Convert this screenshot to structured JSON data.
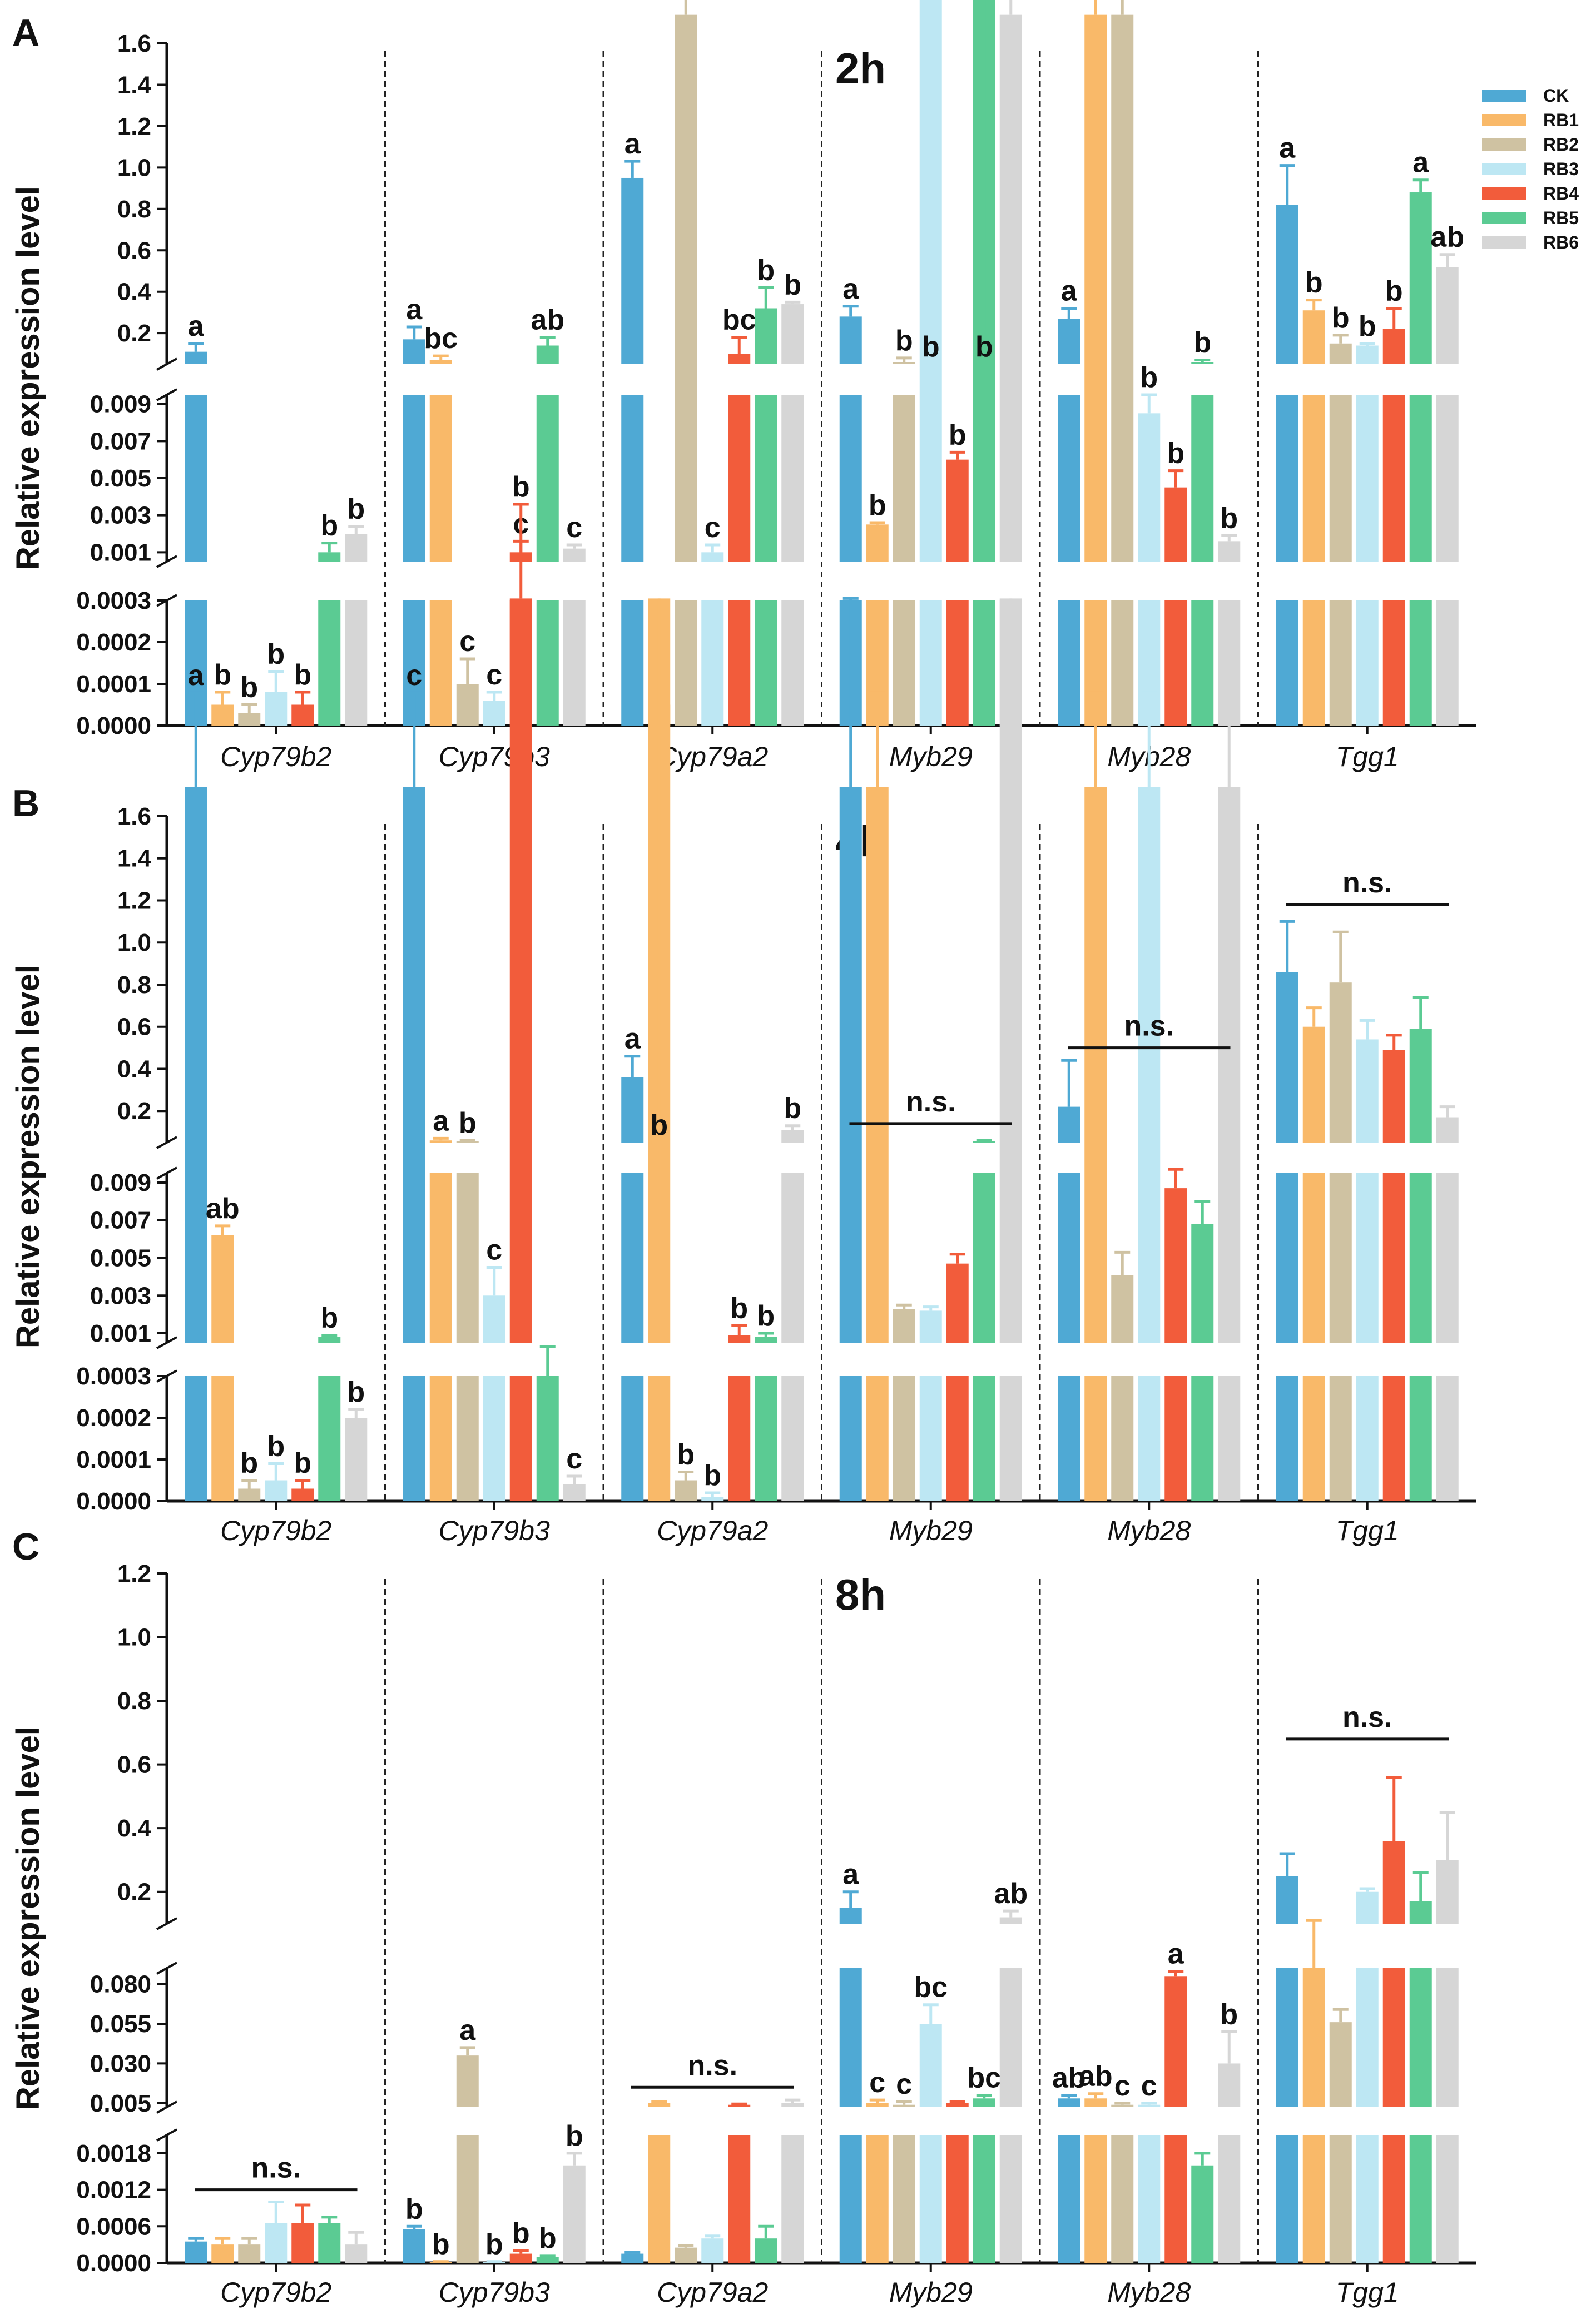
{
  "colors": {
    "CK": "#4FA9D4",
    "RB1": "#F9B969",
    "RB2": "#CFC2A2",
    "RB3": "#BDE7F3",
    "RB4": "#F25C3B",
    "RB5": "#5BCB93",
    "RB6": "#D6D6D6"
  },
  "legend": [
    "CK",
    "RB1",
    "RB2",
    "RB3",
    "RB4",
    "RB5",
    "RB6"
  ],
  "chart_data": [
    {
      "type": "bar",
      "panel": "A",
      "title": "2h",
      "ylabel": "Relative expression level",
      "categories": [
        "Cyp79b2",
        "Cyp79b3",
        "Cyp79a2",
        "Myb29",
        "Myb28",
        "Tgg1"
      ],
      "y_segments": [
        {
          "range": [
            0,
            0.0003
          ],
          "ticks": [
            "0.0000",
            "0.0001",
            "0.0002",
            "0.0003"
          ]
        },
        {
          "range": [
            0.0005,
            0.0095
          ],
          "ticks": [
            "0.001",
            "0.003",
            "0.005",
            "0.007",
            "0.009"
          ]
        },
        {
          "range": [
            0.05,
            1.6
          ],
          "ticks": [
            "0.2",
            "0.4",
            "0.6",
            "0.8",
            "1.0",
            "1.2",
            "1.4",
            "1.6"
          ]
        }
      ],
      "series": [
        {
          "name": "CK",
          "values": [
            0.11,
            0.17,
            0.95,
            0.28,
            0.27,
            0.82
          ],
          "errors": [
            0.04,
            0.06,
            0.08,
            0.05,
            0.05,
            0.19
          ]
        },
        {
          "name": "RB1",
          "values": [
            5e-05,
            0.07,
            5e-05,
            0.0025,
            0.03,
            0.31
          ],
          "errors": [
            3e-05,
            0.02,
            2e-05,
            0.0001,
            0.005,
            0.05
          ]
        },
        {
          "name": "RB2",
          "values": [
            3e-05,
            0.0001,
            0.03,
            0.06,
            0.03,
            0.15
          ],
          "errors": [
            2e-05,
            6e-05,
            0.005,
            0.02,
            0.005,
            0.04
          ]
        },
        {
          "name": "RB3",
          "values": [
            8e-05,
            6e-05,
            0.001,
            0.04,
            0.0085,
            0.14
          ],
          "errors": [
            5e-05,
            2e-05,
            0.0004,
            0.01,
            0.001,
            0.01
          ]
        },
        {
          "name": "RB4",
          "values": [
            5e-05,
            0.001,
            0.1,
            0.006,
            0.0045,
            0.22
          ],
          "errors": [
            3e-05,
            0.0006,
            0.08,
            0.0004,
            0.0009,
            0.1
          ]
        },
        {
          "name": "RB5",
          "values": [
            0.001,
            0.14,
            0.32,
            0.04,
            0.06,
            0.88
          ],
          "errors": [
            0.0005,
            0.04,
            0.1,
            0.01,
            0.01,
            0.06
          ]
        },
        {
          "name": "RB6",
          "values": [
            0.002,
            0.0012,
            0.34,
            0.03,
            0.0016,
            0.52
          ],
          "errors": [
            0.0004,
            0.0002,
            0.01,
            0.005,
            0.0003,
            0.06
          ]
        }
      ],
      "significance": [
        [
          "a",
          "b",
          "b",
          "b",
          "b",
          "b",
          "b"
        ],
        [
          "a",
          "bc",
          "c",
          "c",
          "c",
          "ab",
          "c"
        ],
        [
          "a",
          "c",
          "c",
          "c",
          "bc",
          "b",
          "b"
        ],
        [
          "a",
          "b",
          "b",
          "b",
          "b",
          "b",
          "b"
        ],
        [
          "a",
          "b",
          "b",
          "b",
          "b",
          "b",
          "b"
        ],
        [
          "a",
          "b",
          "b",
          "b",
          "b",
          "a",
          "ab"
        ]
      ],
      "ns_groups": []
    },
    {
      "type": "bar",
      "panel": "B",
      "title": "4h",
      "ylabel": "Relative expression level",
      "categories": [
        "Cyp79b2",
        "Cyp79b3",
        "Cyp79a2",
        "Myb29",
        "Myb28",
        "Tgg1"
      ],
      "y_segments": [
        {
          "range": [
            0,
            0.0003
          ],
          "ticks": [
            "0.0000",
            "0.0001",
            "0.0002",
            "0.0003"
          ]
        },
        {
          "range": [
            0.0005,
            0.0095
          ],
          "ticks": [
            "0.001",
            "0.003",
            "0.005",
            "0.007",
            "0.009"
          ]
        },
        {
          "range": [
            0.05,
            1.6
          ],
          "ticks": [
            "0.2",
            "0.4",
            "0.6",
            "0.8",
            "1.0",
            "1.2",
            "1.4",
            "1.6"
          ]
        }
      ],
      "series": [
        {
          "name": "CK",
          "values": [
            0.03,
            0.03,
            0.36,
            0.03,
            0.22,
            0.86
          ],
          "errors": [
            0.005,
            0.005,
            0.1,
            0.01,
            0.22,
            0.24
          ]
        },
        {
          "name": "RB1",
          "values": [
            0.0062,
            0.06,
            0.04,
            0.03,
            0.03,
            0.6
          ],
          "errors": [
            0.0005,
            0.01,
            0.01,
            0.005,
            0.005,
            0.09
          ]
        },
        {
          "name": "RB2",
          "values": [
            3e-05,
            0.05,
            5e-05,
            0.0023,
            0.0041,
            0.81
          ],
          "errors": [
            2e-05,
            0.01,
            2e-05,
            0.0002,
            0.0012,
            0.24
          ]
        },
        {
          "name": "RB3",
          "values": [
            5e-05,
            0.003,
            1e-05,
            0.0022,
            0.03,
            0.54
          ],
          "errors": [
            4e-05,
            0.0015,
            1e-05,
            0.0002,
            0.005,
            0.09
          ]
        },
        {
          "name": "RB4",
          "values": [
            3e-05,
            0.04,
            0.0009,
            0.0047,
            0.0087,
            0.49
          ],
          "errors": [
            2e-05,
            0.005,
            0.0005,
            0.0005,
            0.001,
            0.07
          ]
        },
        {
          "name": "RB5",
          "values": [
            0.0008,
            0.0003,
            0.0008,
            0.05,
            0.0068,
            0.59
          ],
          "errors": [
            0.0001,
            7e-05,
            0.0002,
            0.01,
            0.0012,
            0.15
          ]
        },
        {
          "name": "RB6",
          "values": [
            0.0002,
            4e-05,
            0.11,
            0.04,
            0.03,
            0.17
          ],
          "errors": [
            2e-05,
            2e-05,
            0.02,
            0.01,
            0.005,
            0.05
          ]
        }
      ],
      "significance": [
        [
          "a",
          "ab",
          "b",
          "b",
          "b",
          "b",
          "b"
        ],
        [
          "c",
          "a",
          "b",
          "c",
          "b",
          "",
          "c"
        ],
        [
          "a",
          "b",
          "b",
          "b",
          "b",
          "b",
          "b"
        ],
        [
          "",
          "",
          "",
          "",
          "",
          "",
          ""
        ],
        [
          "",
          "",
          "",
          "",
          "",
          "",
          ""
        ],
        [
          "",
          "",
          "",
          "",
          "",
          "",
          ""
        ]
      ],
      "ns_groups": [
        {
          "group": 3,
          "label": "n.s.",
          "y": 0.14
        },
        {
          "group": 4,
          "label": "n.s.",
          "y": 0.5
        },
        {
          "group": 5,
          "label": "n.s.",
          "y": 1.18
        }
      ]
    },
    {
      "type": "bar",
      "panel": "C",
      "title": "8h",
      "ylabel": "Relative expression level",
      "categories": [
        "Cyp79b2",
        "Cyp79b3",
        "Cyp79a2",
        "Myb29",
        "Myb28",
        "Tgg1"
      ],
      "y_segments": [
        {
          "range": [
            0,
            0.0021
          ],
          "ticks": [
            "0.0000",
            "0.0006",
            "0.0012",
            "0.0018"
          ]
        },
        {
          "range": [
            0.0025,
            0.09
          ],
          "ticks": [
            "0.005",
            "0.030",
            "0.055",
            "0.080"
          ]
        },
        {
          "range": [
            0.1,
            1.2
          ],
          "ticks": [
            "0.2",
            "0.4",
            "0.6",
            "0.8",
            "1.0",
            "1.2"
          ]
        }
      ],
      "series": [
        {
          "name": "CK",
          "values": [
            0.00035,
            0.00055,
            0.00015,
            0.15,
            0.008,
            0.25
          ],
          "errors": [
            5e-05,
            5e-05,
            2e-05,
            0.05,
            0.002,
            0.07
          ]
        },
        {
          "name": "RB1",
          "values": [
            0.0003,
            1e-05,
            0.005,
            0.005,
            0.008,
            0.09
          ],
          "errors": [
            0.0001,
            1e-05,
            0.001,
            0.002,
            0.003,
            0.02
          ]
        },
        {
          "name": "RB2",
          "values": [
            0.0003,
            0.035,
            0.00025,
            0.004,
            0.004,
            0.056
          ],
          "errors": [
            0.0001,
            0.005,
            3e-05,
            0.002,
            0.001,
            0.008
          ]
        },
        {
          "name": "RB3",
          "values": [
            0.00065,
            1e-05,
            0.0004,
            0.055,
            0.004,
            0.2
          ],
          "errors": [
            0.00035,
            1e-05,
            4e-05,
            0.012,
            0.001,
            0.01
          ]
        },
        {
          "name": "RB4",
          "values": [
            0.00065,
            0.00015,
            0.004,
            0.005,
            0.085,
            0.36
          ],
          "errors": [
            0.0003,
            5e-05,
            0.0005,
            0.001,
            0.003,
            0.2
          ]
        },
        {
          "name": "RB5",
          "values": [
            0.00065,
            0.0001,
            0.0004,
            0.008,
            0.0016,
            0.17
          ],
          "errors": [
            0.0001,
            2e-05,
            0.0002,
            0.002,
            0.0002,
            0.09
          ]
        },
        {
          "name": "RB6",
          "values": [
            0.0003,
            0.0016,
            0.005,
            0.12,
            0.03,
            0.3
          ],
          "errors": [
            0.0002,
            0.0002,
            0.002,
            0.02,
            0.02,
            0.15
          ]
        }
      ],
      "significance": [
        [
          "",
          "",
          "",
          "",
          "",
          "",
          ""
        ],
        [
          "b",
          "b",
          "a",
          "b",
          "b",
          "b",
          "b"
        ],
        [
          "",
          "",
          "",
          "",
          "",
          "",
          ""
        ],
        [
          "a",
          "c",
          "c",
          "bc",
          "",
          "bc",
          "ab"
        ],
        [
          "ab",
          "ab",
          "c",
          "c",
          "a",
          "",
          "b"
        ],
        [
          "",
          "",
          "",
          "",
          "",
          "",
          ""
        ]
      ],
      "ns_groups": [
        {
          "group": 0,
          "label": "n.s.",
          "y": 0.0012
        },
        {
          "group": 2,
          "label": "n.s.",
          "y": 0.015
        },
        {
          "group": 5,
          "label": "n.s.",
          "y": 0.68
        }
      ]
    }
  ]
}
